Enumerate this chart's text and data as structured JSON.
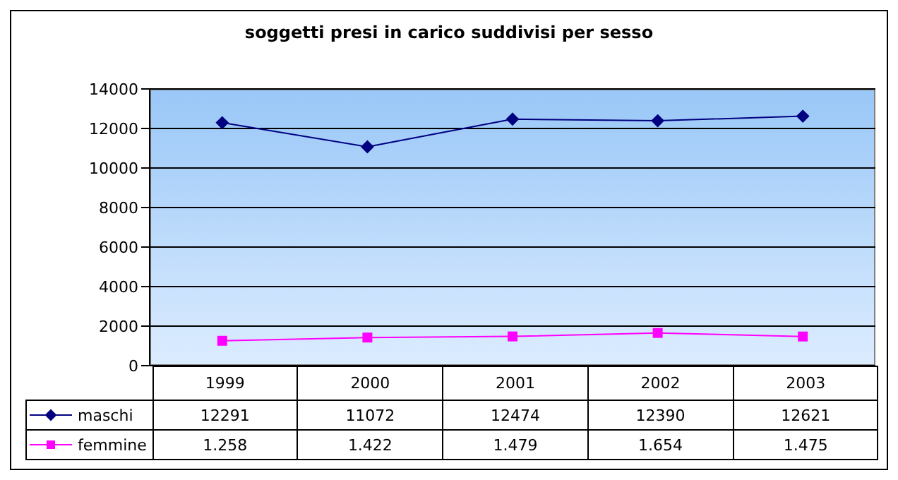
{
  "chart_data": {
    "type": "line",
    "title": "soggetti presi in carico suddivisi per sesso",
    "categories": [
      "1999",
      "2000",
      "2001",
      "2002",
      "2003"
    ],
    "series": [
      {
        "name": "maschi",
        "color": "#000080",
        "marker": "diamond",
        "values": [
          12291,
          11072,
          12474,
          12390,
          12621
        ],
        "value_labels": [
          "12291",
          "11072",
          "12474",
          "12390",
          "12621"
        ]
      },
      {
        "name": "femmine",
        "color": "#ff00ff",
        "marker": "square",
        "values": [
          1258,
          1422,
          1479,
          1654,
          1475
        ],
        "value_labels": [
          "1.258",
          "1.422",
          "1.479",
          "1.654",
          "1.475"
        ]
      }
    ],
    "ylim": [
      0,
      14000
    ],
    "yticks": [
      0,
      2000,
      4000,
      6000,
      8000,
      10000,
      12000,
      14000
    ],
    "grid": "y",
    "legend": "bottom left",
    "line_style": "solid"
  }
}
